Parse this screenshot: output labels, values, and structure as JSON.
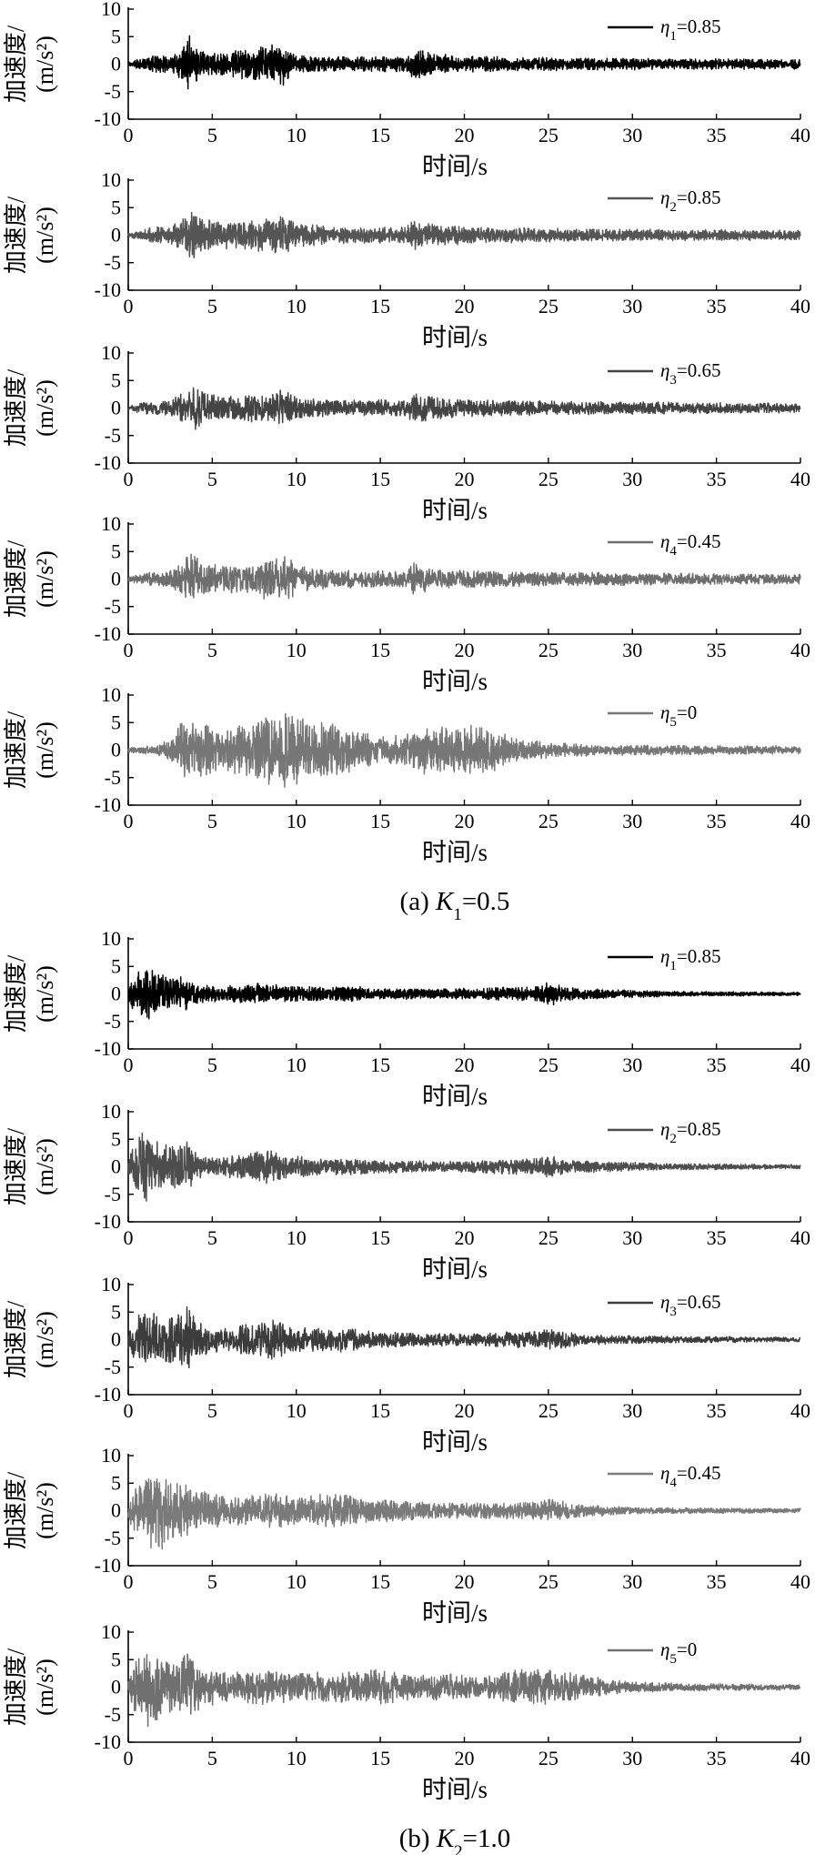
{
  "figure": {
    "captions": [
      {
        "prefix": "(a) ",
        "var": "K",
        "sub": "1",
        "suffix": "=0.5"
      },
      {
        "prefix": "(b) ",
        "var": "K",
        "sub": "2",
        "suffix": "=1.0"
      }
    ]
  },
  "chart_data": [
    {
      "type": "line",
      "group": "(a) K1=0.5",
      "xlabel": "时间/s",
      "ylabel": "加速度/(m/s²)",
      "xlim": [
        0,
        40
      ],
      "ylim": [
        -10,
        10
      ],
      "xticks": [
        0,
        5,
        10,
        15,
        20,
        25,
        30,
        35,
        40
      ],
      "yticks": [
        10,
        5,
        0,
        -5,
        -10
      ],
      "legend": {
        "symbol": "η",
        "sub": "1",
        "value": "=0.85"
      },
      "color": "#000000",
      "envelope": [
        [
          0,
          0.4
        ],
        [
          0.5,
          0.8
        ],
        [
          1.5,
          1.6
        ],
        [
          2.5,
          1.5
        ],
        [
          3.2,
          3.2
        ],
        [
          3.6,
          5.4
        ],
        [
          4.2,
          3.0
        ],
        [
          5,
          2.2
        ],
        [
          6.5,
          2.6
        ],
        [
          8.5,
          3.6
        ],
        [
          9.2,
          4.0
        ],
        [
          10,
          1.8
        ],
        [
          12,
          1.3
        ],
        [
          16.5,
          1.5
        ],
        [
          17,
          3.0
        ],
        [
          18,
          2.0
        ],
        [
          20,
          1.6
        ],
        [
          23,
          1.3
        ],
        [
          28,
          1.1
        ],
        [
          35,
          1.0
        ],
        [
          40,
          0.9
        ]
      ],
      "rate": 3.5
    },
    {
      "type": "line",
      "group": "(a) K1=0.5",
      "xlabel": "时间/s",
      "ylabel": "加速度/(m/s²)",
      "xlim": [
        0,
        40
      ],
      "ylim": [
        -10,
        10
      ],
      "xticks": [
        0,
        5,
        10,
        15,
        20,
        25,
        30,
        35,
        40
      ],
      "yticks": [
        10,
        5,
        0,
        -5,
        -10
      ],
      "legend": {
        "symbol": "η",
        "sub": "2",
        "value": "=0.85"
      },
      "color": "#555555",
      "envelope": [
        [
          0,
          0.4
        ],
        [
          0.5,
          0.8
        ],
        [
          1.5,
          1.5
        ],
        [
          2.5,
          1.6
        ],
        [
          3.3,
          3.2
        ],
        [
          3.7,
          4.6
        ],
        [
          4.3,
          3.4
        ],
        [
          5,
          2.6
        ],
        [
          6.5,
          2.4
        ],
        [
          8.3,
          3.2
        ],
        [
          9.3,
          3.6
        ],
        [
          10,
          2.2
        ],
        [
          12,
          1.6
        ],
        [
          16.5,
          1.5
        ],
        [
          17,
          3.0
        ],
        [
          18,
          2.2
        ],
        [
          20,
          1.6
        ],
        [
          23,
          1.4
        ],
        [
          28,
          1.1
        ],
        [
          35,
          1.0
        ],
        [
          40,
          0.9
        ]
      ],
      "rate": 4.5
    },
    {
      "type": "line",
      "group": "(a) K1=0.5",
      "xlabel": "时间/s",
      "ylabel": "加速度/(m/s²)",
      "xlim": [
        0,
        40
      ],
      "ylim": [
        -10,
        10
      ],
      "xticks": [
        0,
        5,
        10,
        15,
        20,
        25,
        30,
        35,
        40
      ],
      "yticks": [
        10,
        5,
        0,
        -5,
        -10
      ],
      "legend": {
        "symbol": "η",
        "sub": "3",
        "value": "=0.65"
      },
      "color": "#444444",
      "envelope": [
        [
          0,
          0.4
        ],
        [
          0.5,
          0.8
        ],
        [
          1.5,
          1.3
        ],
        [
          2.5,
          1.5
        ],
        [
          3.3,
          3.4
        ],
        [
          3.7,
          4.8
        ],
        [
          4.3,
          3.6
        ],
        [
          5,
          2.8
        ],
        [
          6.5,
          2.2
        ],
        [
          8.5,
          3.0
        ],
        [
          9.3,
          3.6
        ],
        [
          10,
          2.0
        ],
        [
          12,
          1.5
        ],
        [
          16.5,
          1.5
        ],
        [
          17,
          3.0
        ],
        [
          18,
          2.2
        ],
        [
          20,
          1.6
        ],
        [
          23,
          1.4
        ],
        [
          28,
          1.2
        ],
        [
          35,
          1.0
        ],
        [
          40,
          0.9
        ]
      ],
      "rate": 5.5
    },
    {
      "type": "line",
      "group": "(a) K1=0.5",
      "xlabel": "时间/s",
      "ylabel": "加速度/(m/s²)",
      "xlim": [
        0,
        40
      ],
      "ylim": [
        -10,
        10
      ],
      "xticks": [
        0,
        5,
        10,
        15,
        20,
        25,
        30,
        35,
        40
      ],
      "yticks": [
        10,
        5,
        0,
        -5,
        -10
      ],
      "legend": {
        "symbol": "η",
        "sub": "4",
        "value": "=0.45"
      },
      "color": "#6e6e6e",
      "envelope": [
        [
          0,
          0.4
        ],
        [
          0.5,
          0.8
        ],
        [
          1.5,
          1.3
        ],
        [
          2.5,
          1.5
        ],
        [
          3.3,
          3.6
        ],
        [
          3.7,
          4.8
        ],
        [
          4.5,
          3.2
        ],
        [
          5.5,
          2.6
        ],
        [
          7,
          2.4
        ],
        [
          8.8,
          4.6
        ],
        [
          9.4,
          4.4
        ],
        [
          10.2,
          2.4
        ],
        [
          12,
          1.7
        ],
        [
          16.5,
          1.5
        ],
        [
          17,
          3.0
        ],
        [
          18,
          2.0
        ],
        [
          20,
          1.6
        ],
        [
          23,
          1.4
        ],
        [
          28,
          1.2
        ],
        [
          35,
          1.0
        ],
        [
          40,
          0.9
        ]
      ],
      "rate": 6.5
    },
    {
      "type": "line",
      "group": "(a) K1=0.5",
      "xlabel": "时间/s",
      "ylabel": "加速度/(m/s²)",
      "xlim": [
        0,
        40
      ],
      "ylim": [
        -10,
        10
      ],
      "xticks": [
        0,
        5,
        10,
        15,
        20,
        25,
        30,
        35,
        40
      ],
      "yticks": [
        10,
        5,
        0,
        -5,
        -10
      ],
      "legend": {
        "symbol": "η",
        "sub": "5",
        "value": "=0"
      },
      "color": "#777777",
      "envelope": [
        [
          0,
          0.4
        ],
        [
          0.5,
          0.6
        ],
        [
          1.5,
          1.0
        ],
        [
          2.5,
          1.8
        ],
        [
          3.3,
          5.8
        ],
        [
          4,
          5.2
        ],
        [
          5,
          4.4
        ],
        [
          6.5,
          4.6
        ],
        [
          8,
          6.2
        ],
        [
          9.3,
          6.8
        ],
        [
          10.5,
          6.0
        ],
        [
          12,
          5.2
        ],
        [
          13.5,
          3.6
        ],
        [
          15,
          2.8
        ],
        [
          16.3,
          2.6
        ],
        [
          17.5,
          4.4
        ],
        [
          19,
          4.4
        ],
        [
          20.3,
          4.8
        ],
        [
          21.5,
          4.2
        ],
        [
          23,
          2.4
        ],
        [
          25,
          1.4
        ],
        [
          28,
          1.0
        ],
        [
          32,
          0.9
        ],
        [
          35,
          0.8
        ],
        [
          40,
          0.8
        ]
      ],
      "rate": 8.0
    },
    {
      "type": "line",
      "group": "(b) K2=1.0",
      "xlabel": "时间/s",
      "ylabel": "加速度/(m/s²)",
      "xlim": [
        0,
        40
      ],
      "ylim": [
        -10,
        10
      ],
      "xticks": [
        0,
        5,
        10,
        15,
        20,
        25,
        30,
        35,
        40
      ],
      "yticks": [
        10,
        5,
        0,
        -5,
        -10
      ],
      "legend": {
        "symbol": "η",
        "sub": "1",
        "value": "=0.85"
      },
      "color": "#000000",
      "envelope": [
        [
          0,
          1.0
        ],
        [
          0.3,
          3.6
        ],
        [
          0.8,
          5.6
        ],
        [
          1.5,
          4.6
        ],
        [
          2.5,
          4.0
        ],
        [
          3.5,
          3.4
        ],
        [
          4,
          2.2
        ],
        [
          5,
          1.4
        ],
        [
          7.5,
          1.8
        ],
        [
          8,
          2.2
        ],
        [
          9,
          1.6
        ],
        [
          12,
          1.2
        ],
        [
          13,
          1.6
        ],
        [
          15,
          1.0
        ],
        [
          19,
          1.0
        ],
        [
          24.5,
          1.4
        ],
        [
          25,
          2.4
        ],
        [
          26,
          1.2
        ],
        [
          29,
          0.8
        ],
        [
          32,
          0.5
        ],
        [
          40,
          0.3
        ]
      ],
      "rate": 4.0
    },
    {
      "type": "line",
      "group": "(b) K2=1.0",
      "xlabel": "时间/s",
      "ylabel": "加速度/(m/s²)",
      "xlim": [
        0,
        40
      ],
      "ylim": [
        -10,
        10
      ],
      "xticks": [
        0,
        5,
        10,
        15,
        20,
        25,
        30,
        35,
        40
      ],
      "yticks": [
        10,
        5,
        0,
        -5,
        -10
      ],
      "legend": {
        "symbol": "η",
        "sub": "2",
        "value": "=0.85"
      },
      "color": "#4d4d4d",
      "envelope": [
        [
          0,
          1.4
        ],
        [
          0.4,
          4.6
        ],
        [
          0.9,
          7.0
        ],
        [
          1.5,
          5.2
        ],
        [
          2.5,
          3.8
        ],
        [
          3.5,
          4.8
        ],
        [
          4,
          2.6
        ],
        [
          5,
          1.6
        ],
        [
          7.5,
          2.8
        ],
        [
          8.3,
          3.2
        ],
        [
          9.5,
          2.2
        ],
        [
          12,
          1.4
        ],
        [
          13,
          1.6
        ],
        [
          15,
          1.2
        ],
        [
          20,
          1.0
        ],
        [
          24.5,
          1.6
        ],
        [
          25,
          2.2
        ],
        [
          26,
          1.2
        ],
        [
          29,
          0.9
        ],
        [
          32,
          0.6
        ],
        [
          40,
          0.4
        ]
      ],
      "rate": 5.0
    },
    {
      "type": "line",
      "group": "(b) K2=1.0",
      "xlabel": "时间/s",
      "ylabel": "加速度/(m/s²)",
      "xlim": [
        0,
        40
      ],
      "ylim": [
        -10,
        10
      ],
      "xticks": [
        0,
        5,
        10,
        15,
        20,
        25,
        30,
        35,
        40
      ],
      "yticks": [
        10,
        5,
        0,
        -5,
        -10
      ],
      "legend": {
        "symbol": "η",
        "sub": "3",
        "value": "=0.65"
      },
      "color": "#3c3c3c",
      "envelope": [
        [
          0,
          1.6
        ],
        [
          0.4,
          4.4
        ],
        [
          1,
          5.4
        ],
        [
          2,
          4.4
        ],
        [
          3,
          4.6
        ],
        [
          3.5,
          6.0
        ],
        [
          4.5,
          2.8
        ],
        [
          6,
          2.0
        ],
        [
          8,
          3.6
        ],
        [
          8.5,
          4.2
        ],
        [
          9.5,
          2.4
        ],
        [
          12,
          2.0
        ],
        [
          13,
          2.8
        ],
        [
          14,
          1.6
        ],
        [
          17,
          1.3
        ],
        [
          20,
          1.2
        ],
        [
          24.5,
          1.6
        ],
        [
          25,
          2.0
        ],
        [
          27,
          1.0
        ],
        [
          30,
          0.7
        ],
        [
          40,
          0.4
        ]
      ],
      "rate": 6.0
    },
    {
      "type": "line",
      "group": "(b) K2=1.0",
      "xlabel": "时间/s",
      "ylabel": "加速度/(m/s²)",
      "xlim": [
        0,
        40
      ],
      "ylim": [
        -10,
        10
      ],
      "xticks": [
        0,
        5,
        10,
        15,
        20,
        25,
        30,
        35,
        40
      ],
      "yticks": [
        10,
        5,
        0,
        -5,
        -10
      ],
      "legend": {
        "symbol": "η",
        "sub": "4",
        "value": "=0.45"
      },
      "color": "#7a7a7a",
      "envelope": [
        [
          0,
          1.8
        ],
        [
          0.5,
          4.6
        ],
        [
          1.2,
          6.8
        ],
        [
          2,
          7.2
        ],
        [
          3,
          5.4
        ],
        [
          4,
          4.4
        ],
        [
          5,
          3.2
        ],
        [
          7,
          2.6
        ],
        [
          8.5,
          3.4
        ],
        [
          10,
          2.6
        ],
        [
          12,
          3.2
        ],
        [
          13,
          3.4
        ],
        [
          14,
          2.2
        ],
        [
          17,
          1.8
        ],
        [
          20,
          1.4
        ],
        [
          24.5,
          1.6
        ],
        [
          25,
          2.4
        ],
        [
          27,
          1.2
        ],
        [
          30,
          0.6
        ],
        [
          35,
          0.5
        ],
        [
          40,
          0.4
        ]
      ],
      "rate": 8.0
    },
    {
      "type": "line",
      "group": "(b) K2=1.0",
      "xlabel": "时间/s",
      "ylabel": "加速度/(m/s²)",
      "xlim": [
        0,
        40
      ],
      "ylim": [
        -10,
        10
      ],
      "xticks": [
        0,
        5,
        10,
        15,
        20,
        25,
        30,
        35,
        40
      ],
      "yticks": [
        10,
        5,
        0,
        -5,
        -10
      ],
      "legend": {
        "symbol": "η",
        "sub": "5",
        "value": "=0"
      },
      "color": "#707070",
      "envelope": [
        [
          0,
          2.0
        ],
        [
          0.5,
          6.0
        ],
        [
          1.2,
          7.8
        ],
        [
          2,
          5.4
        ],
        [
          3,
          4.8
        ],
        [
          3.6,
          6.6
        ],
        [
          4.5,
          3.6
        ],
        [
          6,
          2.8
        ],
        [
          8,
          3.2
        ],
        [
          10,
          2.6
        ],
        [
          12,
          2.8
        ],
        [
          13,
          3.2
        ],
        [
          14,
          2.4
        ],
        [
          14.8,
          3.8
        ],
        [
          15.5,
          3.0
        ],
        [
          17,
          2.2
        ],
        [
          19,
          2.6
        ],
        [
          21,
          1.8
        ],
        [
          23.3,
          3.4
        ],
        [
          24,
          3.4
        ],
        [
          25,
          3.2
        ],
        [
          26,
          2.8
        ],
        [
          27.5,
          2.0
        ],
        [
          30,
          1.0
        ],
        [
          33,
          0.7
        ],
        [
          40,
          0.5
        ]
      ],
      "rate": 9.0
    }
  ]
}
